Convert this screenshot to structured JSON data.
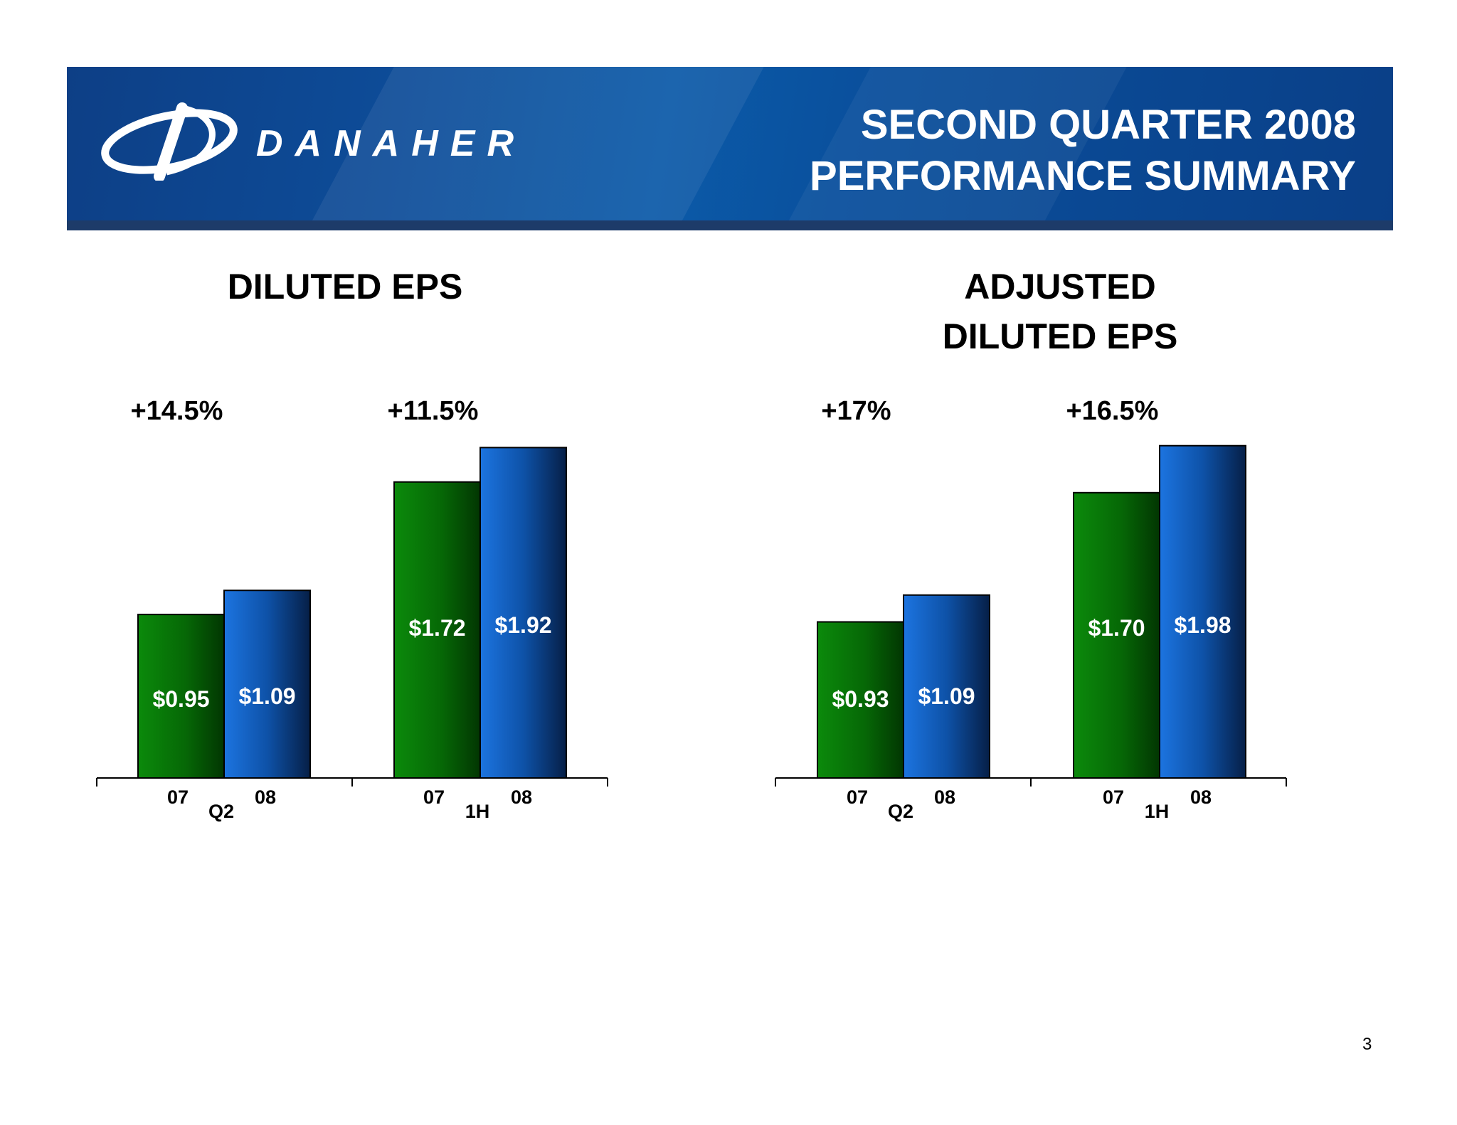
{
  "header": {
    "logo_text": "DANAHER",
    "title_line1": "SECOND QUARTER 2008",
    "title_line2": "PERFORMANCE SUMMARY",
    "colors": {
      "banner": "#0b4f9e",
      "stripe": "#1d3b69"
    }
  },
  "colors": {
    "bar_2007": "#0a7a0a",
    "bar_2008": "#1a6ad0"
  },
  "chart_data": [
    {
      "type": "bar",
      "title": "DILUTED EPS",
      "groups": [
        "Q2",
        "1H"
      ],
      "categories": [
        "07",
        "08"
      ],
      "series": [
        {
          "values": [
            0.95,
            1.72
          ],
          "labels": [
            "$0.95",
            "$1.72"
          ]
        },
        {
          "values": [
            1.09,
            1.92
          ],
          "labels": [
            "$1.09",
            "$1.92"
          ]
        }
      ],
      "growth": [
        "+14.5%",
        "+11.5%"
      ]
    },
    {
      "type": "bar",
      "title": "ADJUSTED\nDILUTED EPS",
      "title_line1": "ADJUSTED",
      "title_line2": "DILUTED EPS",
      "groups": [
        "Q2",
        "1H"
      ],
      "categories": [
        "07",
        "08"
      ],
      "series": [
        {
          "values": [
            0.93,
            1.7
          ],
          "labels": [
            "$0.93",
            "$1.70"
          ]
        },
        {
          "values": [
            1.09,
            1.98
          ],
          "labels": [
            "$1.09",
            "$1.98"
          ]
        }
      ],
      "growth": [
        "+17%",
        "+16.5%"
      ]
    }
  ],
  "page_number": "3"
}
